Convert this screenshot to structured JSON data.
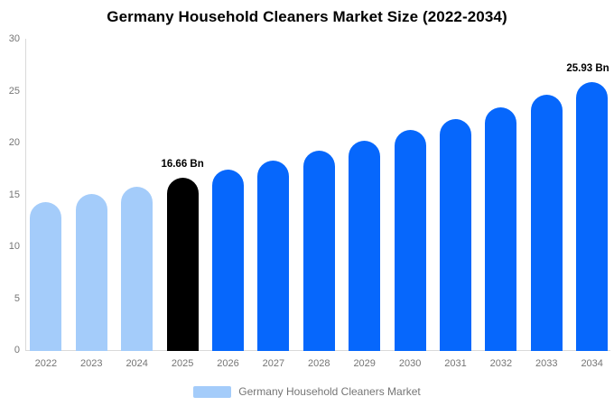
{
  "chart_data": {
    "type": "bar",
    "title": "Germany Household Cleaners Market Size (2022-2034)",
    "unit": "Bn",
    "categories": [
      "2022",
      "2023",
      "2024",
      "2025",
      "2026",
      "2027",
      "2028",
      "2029",
      "2030",
      "2031",
      "2032",
      "2033",
      "2034"
    ],
    "values": [
      14.38,
      15.1,
      15.86,
      16.66,
      17.5,
      18.38,
      19.3,
      20.27,
      21.29,
      22.36,
      23.48,
      24.66,
      25.93
    ],
    "bar_colors": [
      "#A4CCFA",
      "#A4CCFA",
      "#A4CCFA",
      "#000000",
      "#0667FC",
      "#0667FC",
      "#0667FC",
      "#0667FC",
      "#0667FC",
      "#0667FC",
      "#0667FC",
      "#0667FC",
      "#0667FC"
    ],
    "annotations": [
      {
        "index": 3,
        "label": "16.66 Bn"
      },
      {
        "index": 12,
        "label": "25.93 Bn"
      }
    ],
    "yticks": [
      0,
      5,
      10,
      15,
      20,
      25,
      30
    ],
    "ylim": [
      0,
      30
    ],
    "grid": "off",
    "xlabel": "",
    "ylabel": "",
    "legend": {
      "label": "Germany Household Cleaners Market",
      "swatch_color": "#A4CCFA",
      "position": "bottom-center"
    },
    "colors": {
      "historical": "#A4CCFA",
      "base_year": "#000000",
      "forecast": "#0667FC",
      "axis_line": "#d9d9d9",
      "axis_text": "#757575"
    }
  }
}
